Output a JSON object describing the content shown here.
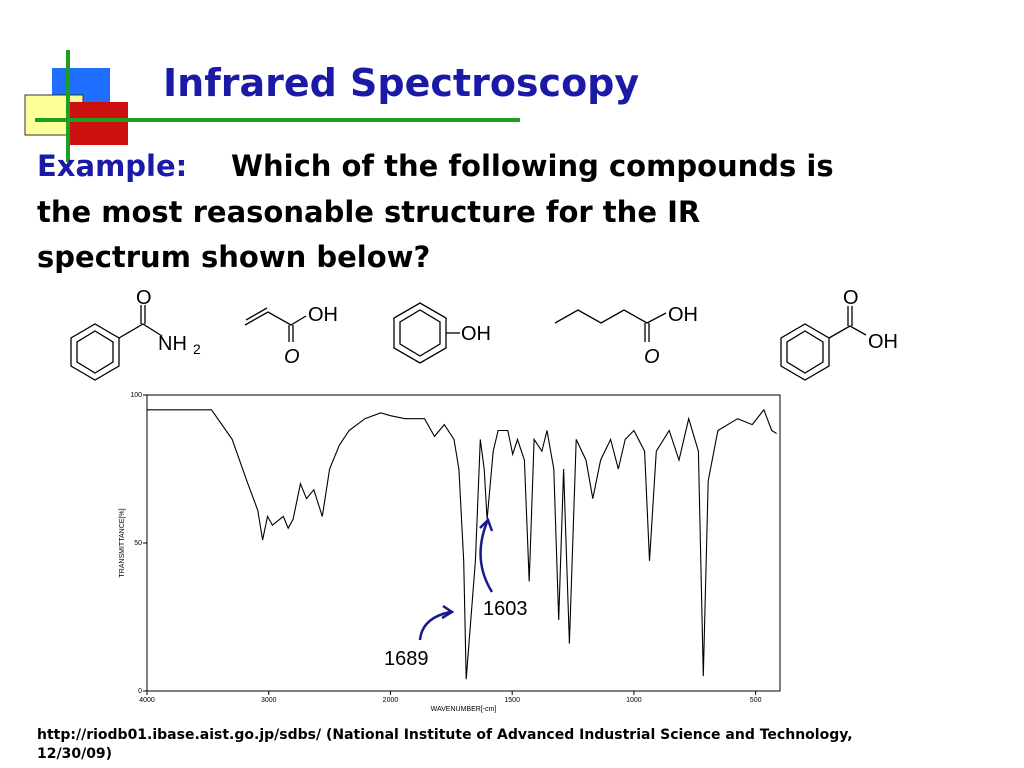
{
  "header": {
    "title": "Infrared Spectroscopy"
  },
  "question": {
    "label": "Example:",
    "lines": [
      "Which of the following compounds is",
      "the most reasonable structure for the IR",
      "spectrum shown below?"
    ]
  },
  "structures": [
    {
      "labels": [
        "O",
        "NH",
        "2"
      ]
    },
    {
      "labels": [
        "OH",
        "O"
      ]
    },
    {
      "labels": [
        "OH"
      ]
    },
    {
      "labels": [
        "OH",
        "O"
      ]
    },
    {
      "labels": [
        "O",
        "OH"
      ]
    }
  ],
  "chart_data": {
    "type": "line",
    "xlabel": "WAVENUMBER[-cm]",
    "ylabel": "TRANSMITTANCE[%]",
    "xlim": [
      4000,
      400
    ],
    "x_scale_break": 2000,
    "ylim": [
      0,
      100
    ],
    "xticks": [
      4000,
      3000,
      2000,
      1500,
      1000,
      500
    ],
    "yticks": [
      100,
      50,
      0
    ],
    "color": "#000000",
    "x": [
      4000,
      3470,
      3300,
      3180,
      3090,
      3050,
      3010,
      2970,
      2880,
      2840,
      2800,
      2740,
      2690,
      2630,
      2560,
      2500,
      2420,
      2340,
      2210,
      2080,
      2000,
      1940,
      1860,
      1819,
      1779,
      1739,
      1719,
      1699,
      1689,
      1651,
      1631,
      1615,
      1603,
      1578,
      1558,
      1518,
      1498,
      1478,
      1450,
      1430,
      1410,
      1378,
      1357,
      1329,
      1309,
      1289,
      1265,
      1237,
      1197,
      1169,
      1137,
      1096,
      1064,
      1036,
      1000,
      956,
      936,
      908,
      855,
      815,
      775,
      735,
      715,
      695,
      655,
      574,
      514,
      466,
      434,
      414
    ],
    "values": [
      95,
      95,
      85,
      71,
      61,
      51,
      59,
      56,
      59,
      55,
      58,
      70,
      65,
      68,
      59,
      75,
      83,
      88,
      92,
      94,
      93,
      92,
      92,
      86,
      90,
      85,
      75,
      44,
      4,
      44,
      85,
      75,
      58,
      81,
      88,
      88,
      80,
      85,
      78,
      37,
      85,
      81,
      88,
      75,
      24,
      75,
      16,
      85,
      78,
      65,
      78,
      85,
      75,
      85,
      88,
      81,
      44,
      81,
      88,
      78,
      92,
      81,
      5,
      71,
      88,
      92,
      90,
      95,
      88,
      87
    ],
    "annotations": [
      "1689",
      "1603"
    ]
  },
  "footer": {
    "lines": [
      "http://riodb01.ibase.aist.go.jp/sdbs/ (National Institute of Advanced Industrial Science and Technology,",
      "12/30/09)"
    ]
  }
}
